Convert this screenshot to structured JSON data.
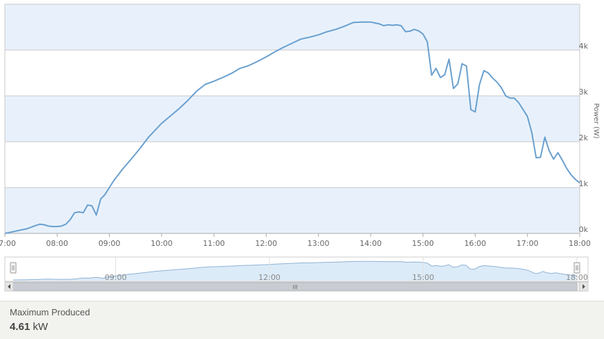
{
  "chart_data": {
    "type": "line",
    "title": "",
    "xlabel": "",
    "ylabel": "Power (W)",
    "x_ticks": [
      "07:00",
      "08:00",
      "09:00",
      "10:00",
      "11:00",
      "12:00",
      "13:00",
      "14:00",
      "15:00",
      "16:00",
      "17:00",
      "18:00"
    ],
    "y_ticks": [
      "0k",
      "1k",
      "2k",
      "3k",
      "4k"
    ],
    "xlim": [
      "07:00",
      "18:00"
    ],
    "ylim": [
      0,
      5000
    ],
    "grid": true,
    "grid_band_colors": [
      "#e8f1fb",
      "#ffffff"
    ],
    "line_color": "#6aa0cf",
    "series": [
      {
        "name": "",
        "x": [
          "06:58",
          "07:05",
          "07:15",
          "07:25",
          "07:35",
          "07:40",
          "07:45",
          "07:50",
          "07:55",
          "08:00",
          "08:05",
          "08:10",
          "08:15",
          "08:20",
          "08:25",
          "08:30",
          "08:35",
          "08:40",
          "08:45",
          "08:50",
          "08:55",
          "09:00",
          "09:05",
          "09:15",
          "09:25",
          "09:35",
          "09:45",
          "09:55",
          "10:00",
          "10:10",
          "10:20",
          "10:30",
          "10:40",
          "10:50",
          "11:00",
          "11:10",
          "11:20",
          "11:30",
          "11:40",
          "11:50",
          "12:00",
          "12:10",
          "12:20",
          "12:30",
          "12:40",
          "12:50",
          "13:00",
          "13:10",
          "13:20",
          "13:30",
          "13:40",
          "13:50",
          "14:00",
          "14:05",
          "14:10",
          "14:15",
          "14:20",
          "14:25",
          "14:30",
          "14:35",
          "14:40",
          "14:45",
          "14:50",
          "14:55",
          "15:00",
          "15:05",
          "15:10",
          "15:15",
          "15:20",
          "15:25",
          "15:30",
          "15:35",
          "15:40",
          "15:45",
          "15:50",
          "15:55",
          "16:00",
          "16:05",
          "16:10",
          "16:15",
          "16:20",
          "16:25",
          "16:30",
          "16:35",
          "16:40",
          "16:45",
          "16:50",
          "16:55",
          "17:00",
          "17:05",
          "17:10",
          "17:15",
          "17:20",
          "17:25",
          "17:30",
          "17:35",
          "17:40",
          "17:45",
          "17:50",
          "17:55",
          "18:00"
        ],
        "values": [
          0,
          20,
          60,
          100,
          170,
          200,
          190,
          160,
          150,
          150,
          160,
          200,
          300,
          450,
          470,
          450,
          620,
          600,
          400,
          750,
          850,
          1000,
          1150,
          1400,
          1620,
          1850,
          2100,
          2300,
          2400,
          2560,
          2720,
          2900,
          3100,
          3250,
          3320,
          3400,
          3490,
          3600,
          3660,
          3750,
          3850,
          3960,
          4060,
          4150,
          4240,
          4280,
          4330,
          4400,
          4450,
          4520,
          4600,
          4610,
          4610,
          4590,
          4570,
          4530,
          4550,
          4540,
          4550,
          4530,
          4400,
          4410,
          4450,
          4420,
          4350,
          4180,
          3450,
          3600,
          3400,
          3460,
          3800,
          3160,
          3260,
          3700,
          3650,
          2700,
          2650,
          3250,
          3550,
          3500,
          3390,
          3300,
          3180,
          3000,
          2950,
          2950,
          2850,
          2700,
          2550,
          2200,
          1650,
          1660,
          2100,
          1800,
          1620,
          1760,
          1600,
          1420,
          1280,
          1180,
          1100
        ]
      }
    ],
    "navigator": {
      "x_ticks": [
        "09:00",
        "12:00",
        "15:00",
        "18:00"
      ],
      "scrollbar_grip": "III"
    }
  },
  "footer": {
    "label": "Maximum Produced",
    "value_number": "4.61",
    "value_unit": "kW"
  }
}
